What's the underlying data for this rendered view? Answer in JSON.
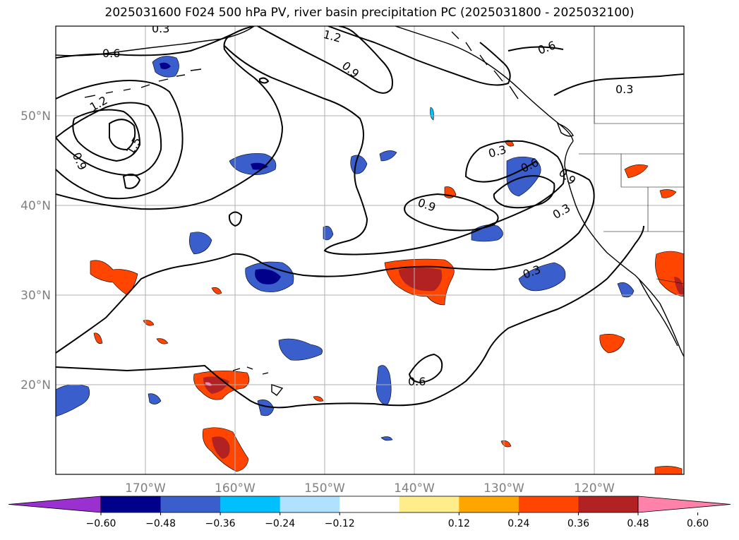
{
  "title": "2025031600 F024 500 hPa PV, river basin precipitation PC (2025031800 - 2025032100)",
  "lat_labels": [
    "50°N",
    "40°N",
    "30°N",
    "20°N"
  ],
  "lon_labels": [
    "170°W",
    "160°W",
    "150°W",
    "140°W",
    "130°W",
    "120°W"
  ],
  "colorbar": {
    "ticks": [
      "−0.60",
      "−0.48",
      "−0.36",
      "−0.24",
      "−0.12",
      "0.12",
      "0.24",
      "0.36",
      "0.48",
      "0.60"
    ],
    "colors": [
      "#9b30d0",
      "#00008b",
      "#3a5fcd",
      "#00bfff",
      "#b0e2ff",
      "#ffffff",
      "#ffec8b",
      "#ffa500",
      "#ff4500",
      "#b22222",
      "#ff82ab"
    ]
  },
  "contour_labels": [
    "0.3",
    "0.6",
    "1.2",
    "0.9",
    "0.6",
    "0.3",
    "1.2",
    "1.5",
    "0.9",
    "0.3",
    "0.6",
    "0.9",
    "0.9",
    "0.3",
    "0.3",
    "0.6"
  ],
  "map_data": {
    "lon_range": [
      -180,
      -110
    ],
    "lat_range": [
      10,
      60
    ],
    "gridlines": true
  }
}
